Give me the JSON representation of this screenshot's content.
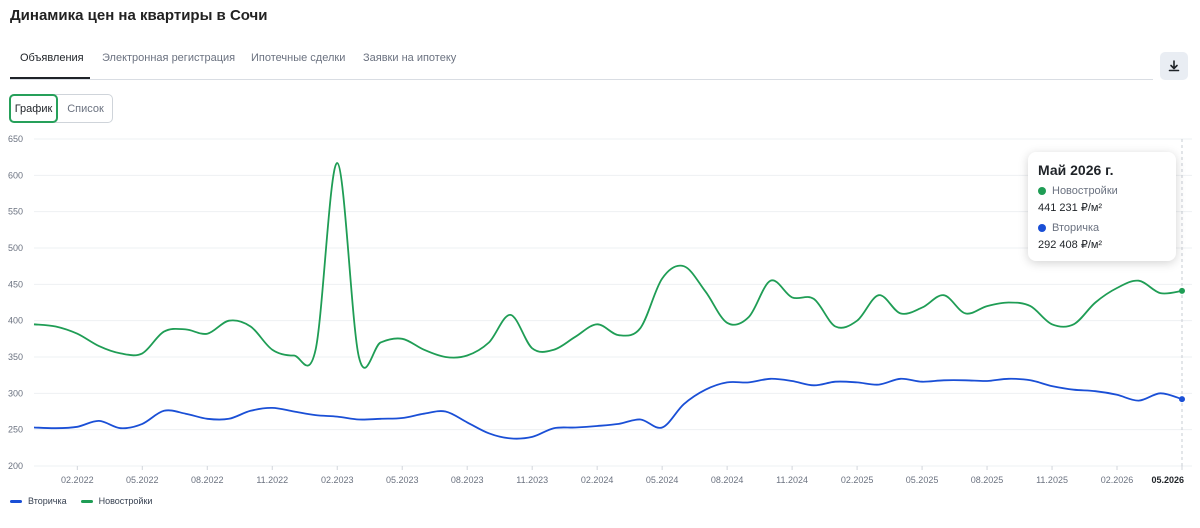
{
  "title": "Динамика цен на квартиры в Сочи",
  "tabs": [
    {
      "label": "Объявления",
      "active": true
    },
    {
      "label": "Электронная регистрация",
      "active": false
    },
    {
      "label": "Ипотечные сделки",
      "active": false
    },
    {
      "label": "Заявки на ипотеку",
      "active": false
    }
  ],
  "download_icon": "download-icon",
  "view_toggle": {
    "chart_label": "График",
    "list_label": "Список",
    "selected": "График"
  },
  "colors": {
    "new": "#1f9d55",
    "secondary": "#1a4fd6",
    "accent": "#26a05a"
  },
  "tooltip": {
    "title": "Май 2026 г.",
    "series": [
      {
        "name": "Новостройки",
        "value": "441 231 ₽/м²",
        "color": "#1f9d55"
      },
      {
        "name": "Вторичка",
        "value": "292 408 ₽/м²",
        "color": "#1a4fd6"
      }
    ]
  },
  "chart_data": {
    "type": "line",
    "x_ticks": [
      "02.2022",
      "05.2022",
      "08.2022",
      "11.2022",
      "02.2023",
      "05.2023",
      "08.2023",
      "11.2023",
      "02.2024",
      "05.2024",
      "08.2024",
      "11.2024",
      "02.2025",
      "05.2025",
      "08.2025",
      "11.2025",
      "02.2026",
      "05.2026"
    ],
    "x_range": [
      "12.2021",
      "05.2026"
    ],
    "ylim": [
      200,
      650
    ],
    "y_ticks": [
      200,
      250,
      300,
      350,
      400,
      450,
      500,
      550,
      600,
      650
    ],
    "grid": true,
    "legend_position": "bottom-left",
    "series": [
      {
        "name": "Новостройки",
        "color": "#1f9d55",
        "points": [
          [
            "12.2021",
            395
          ],
          [
            "01.2022",
            392
          ],
          [
            "02.2022",
            382
          ],
          [
            "03.2022",
            365
          ],
          [
            "04.2022",
            355
          ],
          [
            "05.2022",
            355
          ],
          [
            "06.2022",
            385
          ],
          [
            "07.2022",
            388
          ],
          [
            "08.2022",
            382
          ],
          [
            "09.2022",
            400
          ],
          [
            "10.2022",
            392
          ],
          [
            "11.2022",
            360
          ],
          [
            "12.2022",
            352
          ],
          [
            "01.2023",
            360
          ],
          [
            "02.2023",
            617
          ],
          [
            "03.2023",
            350
          ],
          [
            "04.2023",
            370
          ],
          [
            "05.2023",
            375
          ],
          [
            "06.2023",
            360
          ],
          [
            "07.2023",
            350
          ],
          [
            "08.2023",
            352
          ],
          [
            "09.2023",
            370
          ],
          [
            "10.2023",
            408
          ],
          [
            "11.2023",
            362
          ],
          [
            "12.2023",
            360
          ],
          [
            "01.2024",
            378
          ],
          [
            "02.2024",
            395
          ],
          [
            "03.2024",
            380
          ],
          [
            "04.2024",
            390
          ],
          [
            "05.2024",
            458
          ],
          [
            "06.2024",
            475
          ],
          [
            "07.2024",
            440
          ],
          [
            "08.2024",
            397
          ],
          [
            "09.2024",
            405
          ],
          [
            "10.2024",
            455
          ],
          [
            "11.2024",
            432
          ],
          [
            "12.2024",
            430
          ],
          [
            "01.2025",
            392
          ],
          [
            "02.2025",
            400
          ],
          [
            "03.2025",
            435
          ],
          [
            "04.2025",
            410
          ],
          [
            "05.2025",
            418
          ],
          [
            "06.2025",
            435
          ],
          [
            "07.2025",
            410
          ],
          [
            "08.2025",
            420
          ],
          [
            "09.2025",
            425
          ],
          [
            "10.2025",
            420
          ],
          [
            "11.2025",
            395
          ],
          [
            "12.2025",
            395
          ],
          [
            "01.2026",
            425
          ],
          [
            "02.2026",
            445
          ],
          [
            "03.2026",
            455
          ],
          [
            "04.2026",
            438
          ],
          [
            "05.2026",
            441
          ]
        ]
      },
      {
        "name": "Вторичка",
        "color": "#1a4fd6",
        "points": [
          [
            "12.2021",
            253
          ],
          [
            "01.2022",
            252
          ],
          [
            "02.2022",
            254
          ],
          [
            "03.2022",
            262
          ],
          [
            "04.2022",
            252
          ],
          [
            "05.2022",
            258
          ],
          [
            "06.2022",
            276
          ],
          [
            "07.2022",
            272
          ],
          [
            "08.2022",
            265
          ],
          [
            "09.2022",
            265
          ],
          [
            "10.2022",
            276
          ],
          [
            "11.2022",
            280
          ],
          [
            "12.2022",
            275
          ],
          [
            "01.2023",
            270
          ],
          [
            "02.2023",
            268
          ],
          [
            "03.2023",
            264
          ],
          [
            "04.2023",
            265
          ],
          [
            "05.2023",
            266
          ],
          [
            "06.2023",
            272
          ],
          [
            "07.2023",
            275
          ],
          [
            "08.2023",
            260
          ],
          [
            "09.2023",
            245
          ],
          [
            "10.2023",
            238
          ],
          [
            "11.2023",
            240
          ],
          [
            "12.2023",
            252
          ],
          [
            "01.2024",
            253
          ],
          [
            "02.2024",
            255
          ],
          [
            "03.2024",
            258
          ],
          [
            "04.2024",
            264
          ],
          [
            "05.2024",
            253
          ],
          [
            "06.2024",
            285
          ],
          [
            "07.2024",
            305
          ],
          [
            "08.2024",
            315
          ],
          [
            "09.2024",
            315
          ],
          [
            "10.2024",
            320
          ],
          [
            "11.2024",
            317
          ],
          [
            "12.2024",
            311
          ],
          [
            "01.2025",
            316
          ],
          [
            "02.2025",
            315
          ],
          [
            "03.2025",
            312
          ],
          [
            "04.2025",
            320
          ],
          [
            "05.2025",
            316
          ],
          [
            "06.2025",
            318
          ],
          [
            "07.2025",
            318
          ],
          [
            "08.2025",
            317
          ],
          [
            "09.2025",
            320
          ],
          [
            "10.2025",
            318
          ],
          [
            "11.2025",
            310
          ],
          [
            "12.2025",
            305
          ],
          [
            "01.2026",
            303
          ],
          [
            "02.2026",
            298
          ],
          [
            "03.2026",
            290
          ],
          [
            "04.2026",
            300
          ],
          [
            "05.2026",
            292
          ]
        ]
      }
    ]
  }
}
